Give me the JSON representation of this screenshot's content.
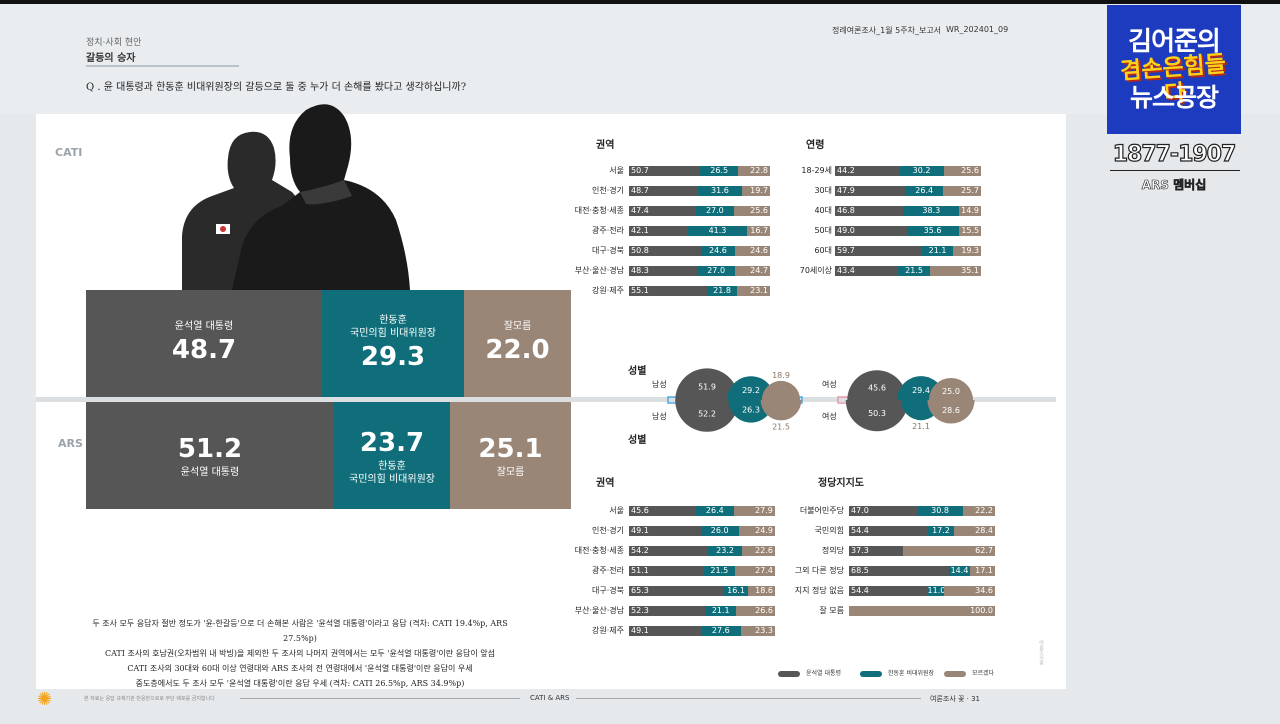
{
  "header": {
    "category": "정치·사회 현안",
    "subtitle": "갈등의 승자",
    "question": "Q . 윤 대통령과 한동훈 비대위원장의 갈등으로 둘 중 누가 더 손해를 봤다고 생각하십니까?",
    "report_name": "정례여론조사_1월 5주차_보고서",
    "report_code": "WR_202401_09"
  },
  "labels": {
    "cati": "CATI",
    "ars": "ARS"
  },
  "colors": {
    "yoon": "#565656",
    "han": "#0f6e79",
    "unknown": "#9a8676",
    "han_accent": "#1b7f8c"
  },
  "chart_data": [
    {
      "type": "bar",
      "title": "CATI",
      "series": [
        {
          "name": "윤석열 대통령",
          "value": 48.7
        },
        {
          "name": "한동훈 국민의힘 비대위원장",
          "value": 29.3
        },
        {
          "name": "잘모름",
          "value": 22.0
        }
      ]
    },
    {
      "type": "bar",
      "title": "ARS",
      "series": [
        {
          "name": "윤석열 대통령",
          "value": 51.2
        },
        {
          "name": "한동훈 국민의힘 비대위원장",
          "value": 23.7
        },
        {
          "name": "잘모름",
          "value": 25.1
        }
      ]
    }
  ],
  "big": {
    "cati": [
      {
        "line1": "윤석열 대통령",
        "line2": "",
        "value": "48.7"
      },
      {
        "line1": "한동훈",
        "line2": "국민의힘 비대위원장",
        "value": "29.3"
      },
      {
        "line1": "잘모름",
        "line2": "",
        "value": "22.0"
      }
    ],
    "ars": [
      {
        "line1": "윤석열 대통령",
        "line2": "",
        "value": "51.2"
      },
      {
        "line1": "한동훈",
        "line2": "국민의힘 비대위원장",
        "value": "23.7"
      },
      {
        "line1": "잘모름",
        "line2": "",
        "value": "25.1"
      }
    ]
  },
  "cati_region": {
    "title": "권역",
    "rows": [
      {
        "label": "서울",
        "v": [
          50.7,
          26.5,
          22.8
        ]
      },
      {
        "label": "인천·경기",
        "v": [
          48.7,
          31.6,
          19.7
        ]
      },
      {
        "label": "대전·충청·세종",
        "v": [
          47.4,
          27.0,
          25.6
        ]
      },
      {
        "label": "광주·전라",
        "v": [
          42.1,
          41.3,
          16.7
        ]
      },
      {
        "label": "대구·경북",
        "v": [
          50.8,
          24.6,
          24.6
        ]
      },
      {
        "label": "부산·울산·경남",
        "v": [
          48.3,
          27.0,
          24.7
        ]
      },
      {
        "label": "강원·제주",
        "v": [
          55.1,
          21.8,
          23.1
        ]
      }
    ]
  },
  "cati_age": {
    "title": "연령",
    "rows": [
      {
        "label": "18-29세",
        "v": [
          44.2,
          30.2,
          25.6
        ]
      },
      {
        "label": "30대",
        "v": [
          47.9,
          26.4,
          25.7
        ]
      },
      {
        "label": "40대",
        "v": [
          46.8,
          38.3,
          14.9
        ]
      },
      {
        "label": "50대",
        "v": [
          49.0,
          35.6,
          15.5
        ]
      },
      {
        "label": "60대",
        "v": [
          59.7,
          21.1,
          19.3
        ]
      },
      {
        "label": "70세이상",
        "v": [
          43.4,
          21.5,
          35.1
        ]
      }
    ]
  },
  "ars_region": {
    "title": "권역",
    "rows": [
      {
        "label": "서울",
        "v": [
          45.6,
          26.4,
          27.9
        ]
      },
      {
        "label": "인천·경기",
        "v": [
          49.1,
          26.0,
          24.9
        ]
      },
      {
        "label": "대전·충청·세종",
        "v": [
          54.2,
          23.2,
          22.6
        ]
      },
      {
        "label": "광주·전라",
        "v": [
          51.1,
          21.5,
          27.4
        ]
      },
      {
        "label": "대구·경북",
        "v": [
          65.3,
          16.1,
          18.6
        ]
      },
      {
        "label": "부산·울산·경남",
        "v": [
          52.3,
          21.1,
          26.6
        ]
      },
      {
        "label": "강원·제주",
        "v": [
          49.1,
          27.6,
          23.3
        ]
      }
    ]
  },
  "ars_party": {
    "title": "정당지지도",
    "rows": [
      {
        "label": "더불어민주당",
        "v": [
          47.0,
          30.8,
          22.2
        ]
      },
      {
        "label": "국민의힘",
        "v": [
          54.4,
          17.2,
          28.4
        ]
      },
      {
        "label": "정의당",
        "v": [
          37.3,
          null,
          62.7
        ]
      },
      {
        "label": "그외 다른 정당",
        "v": [
          68.5,
          14.4,
          17.1
        ]
      },
      {
        "label": "지지 정당 없음",
        "v": [
          54.4,
          11.0,
          34.6
        ]
      },
      {
        "label": "잘 모름",
        "v": [
          null,
          null,
          100.0
        ]
      }
    ]
  },
  "gender": {
    "title_top": "성별",
    "title_bottom": "성별",
    "male_label": "남성",
    "female_label": "여성",
    "cati_male": [
      51.9,
      29.2,
      18.9
    ],
    "ars_male": [
      52.2,
      26.3,
      21.5
    ],
    "cati_female": [
      45.6,
      29.4,
      25.0
    ],
    "ars_female": [
      50.3,
      21.1,
      28.6
    ]
  },
  "legend": {
    "yoon": "윤석열 대통령",
    "han": "한동훈 비대위원장",
    "unknown": "모르겠다"
  },
  "notes": [
    "두 조사 모두 응답자 절반 정도가 '윤-한갈등'으로 더 손해본 사람은 '윤석열 대통령'이라고 응답 (격차: CATI 19.4%p, ARS 27.5%p)",
    "CATI 조사의 호남권(오차범위 내 박빙)을 제외한 두 조사의 나머지 권역에서는 모두 '윤석열 대통령'이란 응답이 앞섬",
    "CATI 조사의 30대와 60대 이상 연령대와 ARS 조사의 전 연령대에서 '윤석열 대통령'이란 응답이 우세",
    "중도층에서도 두 조사 모두 '윤석열 대통령'이란 응답 우세 (격차: CATI 26.5%p, ARS 34.9%p)"
  ],
  "footer": {
    "left": "본 자료는 응답 규제기관 반응한으로로 무단 배포를 금지합니다",
    "center": "CATI & ARS",
    "right": "여론조사 꽃 · 31",
    "vertical": "여론조사꽃"
  },
  "logo": {
    "line1": "김어준의",
    "line2": "겸손은힘들다",
    "line3": "뉴스공장",
    "phone": "1877-1907",
    "ars": "ARS 멤버십"
  }
}
